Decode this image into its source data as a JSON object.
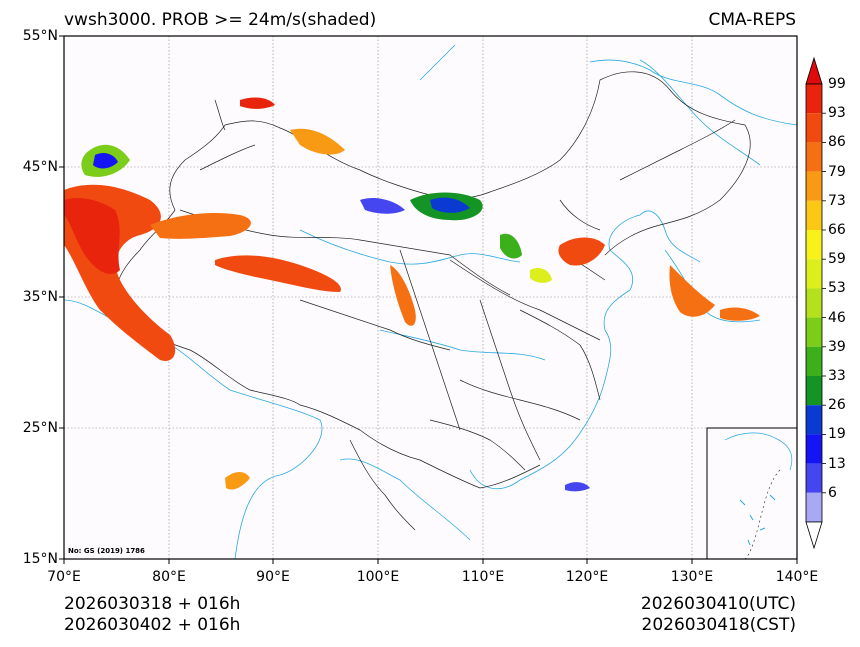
{
  "title_left": "vwsh3000. PROB >= 24m/s(shaded)",
  "title_right": "CMA-REPS",
  "footer": {
    "left_line1": "2026030318  +  016h",
    "left_line2": "2026030402  +  016h",
    "right_line1": "2026030410(UTC)",
    "right_line2": "2026030418(CST)"
  },
  "map_note": "No: GS (2019) 1786",
  "axes": {
    "lat_ticks": [
      "55°N",
      "45°N",
      "35°N",
      "25°N",
      "15°N"
    ],
    "lon_ticks": [
      "70°E",
      "80°E",
      "90°E",
      "100°E",
      "110°E",
      "120°E",
      "130°E",
      "140°E"
    ]
  },
  "colorbar": {
    "levels": [
      "99",
      "93",
      "86",
      "79",
      "73",
      "66",
      "59",
      "53",
      "46",
      "39",
      "33",
      "26",
      "19",
      "13",
      "6"
    ],
    "colors": [
      "#e8250c",
      "#f04a10",
      "#f57012",
      "#f99a14",
      "#fbc816",
      "#f8f21a",
      "#dcef1c",
      "#b4e01c",
      "#7ccc1a",
      "#3cb01a",
      "#149424",
      "#0a3ad2",
      "#1414f5",
      "#4646f0",
      "#a8a8f5"
    ],
    "top_arrow_color": "#e00a0a",
    "bottom_arrow_color": "#ffffff"
  },
  "colors": {
    "land": "#fdfbfd",
    "river": "#29a9e0",
    "border": "#222222",
    "grid": "#888888"
  }
}
